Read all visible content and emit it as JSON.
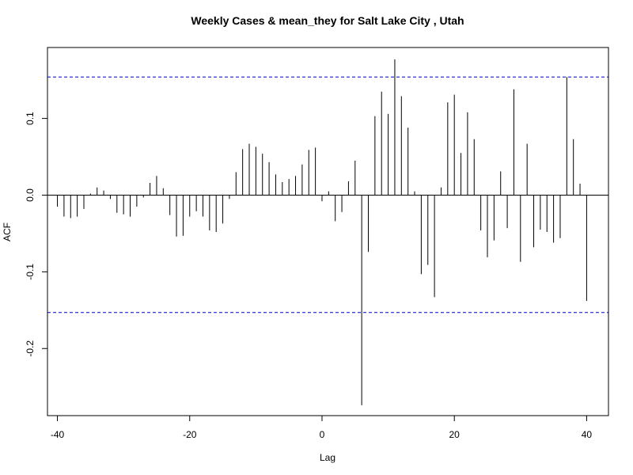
{
  "chart_data": {
    "type": "bar",
    "title": "Weekly Cases & mean_they for Salt Lake City , Utah",
    "xlabel": "Lag",
    "ylabel": "ACF",
    "xlim": [
      -41.5,
      43.3
    ],
    "ylim": [
      -0.2875,
      0.1925
    ],
    "x_ticks": [
      -40,
      -20,
      0,
      20,
      40
    ],
    "x_tick_labels": [
      "-40",
      "-20",
      "0",
      "20",
      "40"
    ],
    "y_ticks": [
      -0.2,
      -0.1,
      0.0,
      0.1
    ],
    "y_tick_labels": [
      "-0.2",
      "-0.1",
      "0.0",
      "0.1"
    ],
    "confidence_bounds": [
      0.154,
      -0.153
    ],
    "bound_color": "#0000cc",
    "bar_color": "#000000",
    "grid": false,
    "lags": [
      -40,
      -39,
      -38,
      -37,
      -36,
      -35,
      -34,
      -33,
      -32,
      -31,
      -30,
      -29,
      -28,
      -27,
      -26,
      -25,
      -24,
      -23,
      -22,
      -21,
      -20,
      -19,
      -18,
      -17,
      -16,
      -15,
      -14,
      -13,
      -12,
      -11,
      -10,
      -9,
      -8,
      -7,
      -6,
      -5,
      -4,
      -3,
      -2,
      -1,
      0,
      1,
      2,
      3,
      4,
      5,
      6,
      7,
      8,
      9,
      10,
      11,
      12,
      13,
      14,
      15,
      16,
      17,
      18,
      19,
      20,
      21,
      22,
      23,
      24,
      25,
      26,
      27,
      28,
      29,
      30,
      31,
      32,
      33,
      34,
      35,
      36,
      37,
      38,
      39,
      40
    ],
    "values": [
      -0.015,
      -0.028,
      -0.03,
      -0.028,
      -0.018,
      0.002,
      0.01,
      0.006,
      -0.005,
      -0.023,
      -0.025,
      -0.028,
      -0.015,
      -0.003,
      0.016,
      0.025,
      0.009,
      -0.026,
      -0.054,
      -0.053,
      -0.028,
      -0.021,
      -0.028,
      -0.046,
      -0.048,
      -0.037,
      -0.005,
      0.03,
      0.06,
      0.067,
      0.063,
      0.054,
      0.043,
      0.027,
      0.017,
      0.021,
      0.025,
      0.04,
      0.059,
      0.062,
      -0.008,
      0.005,
      -0.034,
      -0.022,
      0.018,
      0.045,
      -0.274,
      -0.074,
      0.103,
      0.135,
      0.106,
      0.177,
      0.129,
      0.088,
      0.005,
      -0.103,
      -0.091,
      -0.133,
      0.01,
      0.121,
      0.131,
      0.055,
      0.108,
      0.073,
      -0.046,
      -0.081,
      -0.059,
      0.031,
      -0.043,
      0.138,
      -0.087,
      0.067,
      -0.068,
      -0.045,
      -0.048,
      -0.062,
      -0.056,
      0.154,
      0.073,
      0.015,
      -0.138
    ]
  }
}
